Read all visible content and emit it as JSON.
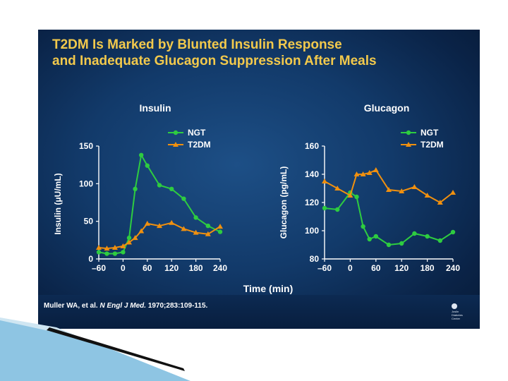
{
  "title_line1": "T2DM Is Marked by Blunted Insulin Response",
  "title_line2": "and Inadequate Glucagon Suppression After Meals",
  "shared_xlabel": "Time (min)",
  "citation": {
    "authors": "Muller WA, et al.",
    "journal": "N Engl J Med.",
    "rest": "1970;283:109-115."
  },
  "logo_text": [
    "Joslin",
    "Diabetes",
    "Center"
  ],
  "colors": {
    "ngt": "#2ecc40",
    "t2dm": "#f0900f",
    "title": "#f2c94c",
    "background": "#0f355f"
  },
  "chart_data": [
    {
      "type": "line",
      "title": "Insulin",
      "xlabel": "Time (min)",
      "ylabel": "Insulin (μU/mL)",
      "xlim": [
        -60,
        240
      ],
      "ylim": [
        0,
        150
      ],
      "xticks": [
        "–60",
        "0",
        "60",
        "120",
        "180",
        "240"
      ],
      "xtick_values": [
        -60,
        0,
        60,
        120,
        180,
        240
      ],
      "yticks": [
        "0",
        "50",
        "100",
        "150"
      ],
      "ytick_values": [
        0,
        50,
        100,
        150
      ],
      "legend": "top-right",
      "series": [
        {
          "name": "NGT",
          "color": "#2ecc40",
          "marker": "circle",
          "x": [
            -60,
            -40,
            -20,
            0,
            15,
            30,
            45,
            60,
            90,
            120,
            150,
            180,
            210,
            240
          ],
          "y": [
            9,
            7,
            7,
            9,
            28,
            93,
            138,
            124,
            98,
            93,
            80,
            55,
            44,
            36
          ]
        },
        {
          "name": "T2DM",
          "color": "#f0900f",
          "marker": "triangle",
          "x": [
            -60,
            -40,
            -20,
            0,
            15,
            30,
            45,
            60,
            90,
            120,
            150,
            180,
            210,
            240
          ],
          "y": [
            15,
            14,
            15,
            17,
            22,
            28,
            37,
            47,
            44,
            48,
            40,
            35,
            33,
            43
          ]
        }
      ]
    },
    {
      "type": "line",
      "title": "Glucagon",
      "xlabel": "Time (min)",
      "ylabel": "Glucagon (pg/mL)",
      "xlim": [
        -60,
        240
      ],
      "ylim": [
        80,
        160
      ],
      "xticks": [
        "–60",
        "0",
        "60",
        "120",
        "180",
        "240"
      ],
      "xtick_values": [
        -60,
        0,
        60,
        120,
        180,
        240
      ],
      "yticks": [
        "80",
        "100",
        "120",
        "140",
        "160"
      ],
      "ytick_values": [
        80,
        100,
        120,
        140,
        160
      ],
      "legend": "top-right",
      "series": [
        {
          "name": "NGT",
          "color": "#2ecc40",
          "marker": "circle",
          "x": [
            -60,
            -30,
            0,
            15,
            30,
            45,
            60,
            90,
            120,
            150,
            180,
            210,
            240
          ],
          "y": [
            116,
            115,
            127,
            124,
            103,
            94,
            96,
            90,
            91,
            98,
            96,
            93,
            99
          ]
        },
        {
          "name": "T2DM",
          "color": "#f0900f",
          "marker": "triangle",
          "x": [
            -60,
            -30,
            0,
            15,
            30,
            45,
            60,
            90,
            120,
            150,
            180,
            210,
            240
          ],
          "y": [
            135,
            130,
            125,
            140,
            140,
            141,
            143,
            129,
            128,
            131,
            125,
            120,
            127
          ]
        }
      ]
    }
  ]
}
